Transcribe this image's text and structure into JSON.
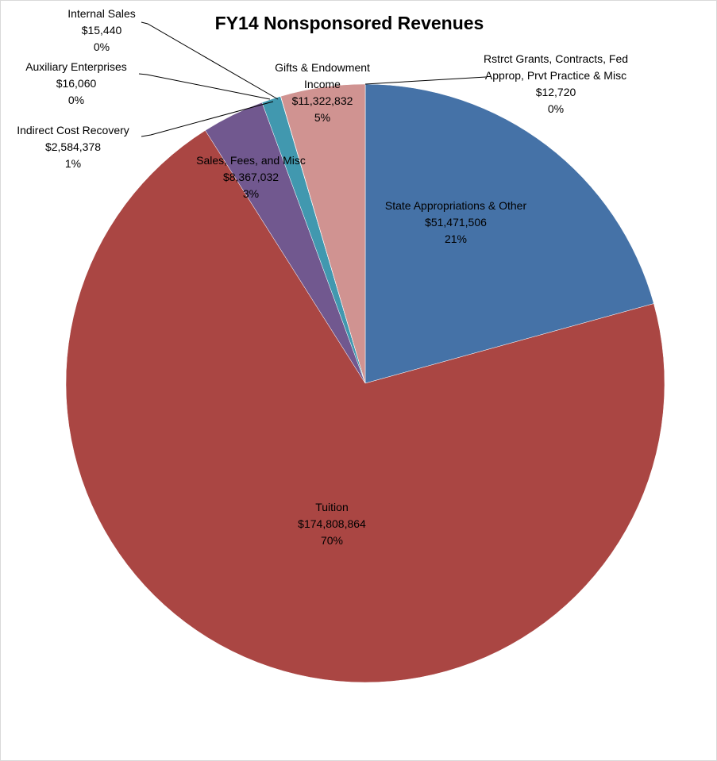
{
  "chart_data": {
    "type": "pie",
    "title": "FY14 Nonsponsored Revenues",
    "categories": [
      "Rstrct Grants, Contracts, Fed Approp, Prvt Practice & Misc",
      "State Appropriations & Other",
      "Tuition",
      "Sales, Fees, and Misc",
      "Indirect Cost Recovery",
      "Auxiliary Enterprises",
      "Internal Sales",
      "Gifts & Endowment Income"
    ],
    "values": [
      12720,
      51471506,
      174808864,
      8367032,
      2584378,
      16060,
      15440,
      11322832
    ],
    "value_labels": [
      "$12,720",
      "$51,471,506",
      "$174,808,864",
      "$8,367,032",
      "$2,584,378",
      "$16,060",
      "$15,440",
      "$11,322,832"
    ],
    "percent_labels": [
      "0%",
      "21%",
      "70%",
      "3%",
      "1%",
      "0%",
      "0%",
      "5%"
    ],
    "colors": [
      "#4572a7",
      "#4572a7",
      "#aa4643",
      "#71588f",
      "#4198af",
      "#db843d",
      "#93a9cf",
      "#d09391"
    ]
  }
}
